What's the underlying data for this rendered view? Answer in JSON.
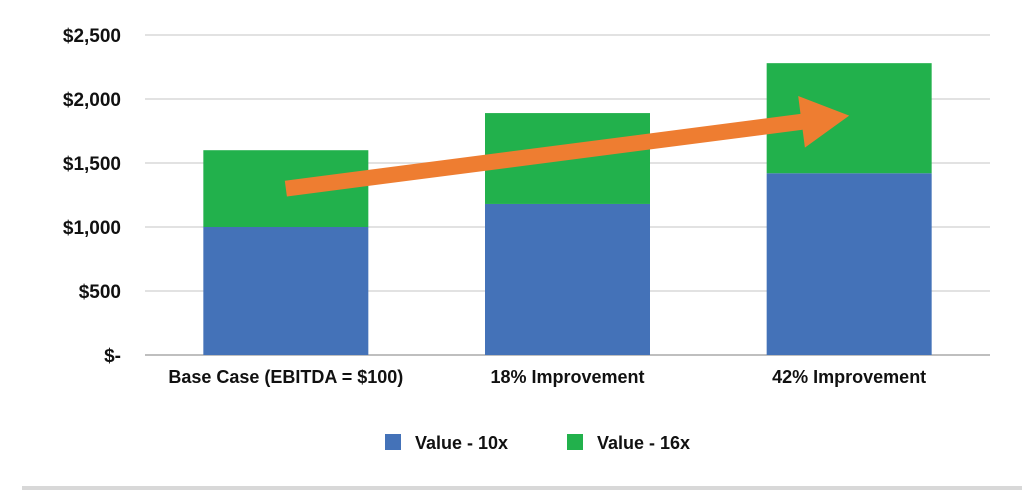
{
  "chart_data": {
    "type": "bar",
    "stacked": true,
    "title": "",
    "xlabel": "",
    "ylabel": "",
    "categories": [
      "Base Case (EBITDA = $100)",
      "18% Improvement",
      "42% Improvement"
    ],
    "series": [
      {
        "name": "Value - 10x",
        "values": [
          1000,
          1180,
          1420
        ],
        "color": "#4472b8"
      },
      {
        "name": "Value - 16x",
        "values": [
          600,
          710,
          860
        ],
        "color": "#22b14c"
      }
    ],
    "ylim": [
      0,
      2500
    ],
    "yticks": [
      0,
      500,
      1000,
      1500,
      2000,
      2500
    ],
    "ytick_labels": [
      "$-",
      "$500",
      "$1,000",
      "$1,500",
      "$2,000",
      "$2,500"
    ],
    "grid": true,
    "legend_position": "bottom",
    "annotations": [
      {
        "type": "arrow",
        "color": "#ee7d31",
        "from": [
          0,
          1300
        ],
        "to": [
          2,
          1870
        ]
      }
    ]
  }
}
